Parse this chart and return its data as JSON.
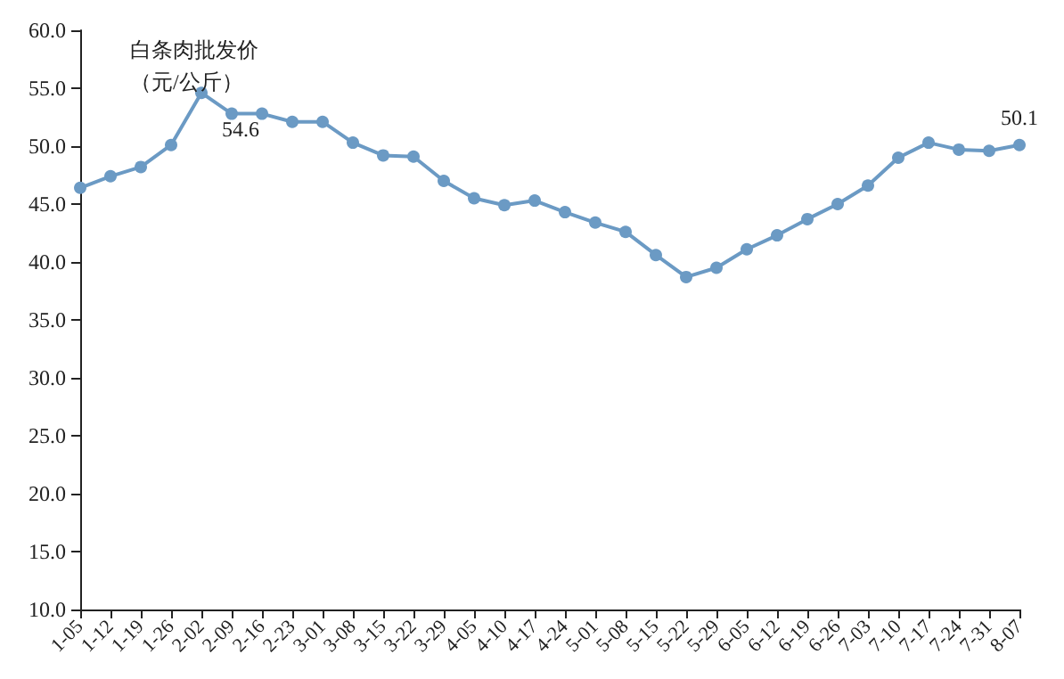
{
  "chart_data": {
    "type": "line",
    "ylabel": "白条肉批发价（元/公斤）",
    "categories": [
      "1-05",
      "1-12",
      "1-19",
      "1-26",
      "2-02",
      "2-09",
      "2-16",
      "2-23",
      "3-01",
      "3-08",
      "3-15",
      "3-22",
      "3-29",
      "4-05",
      "4-10",
      "4-17",
      "4-24",
      "5-01",
      "5-08",
      "5-15",
      "5-22",
      "5-29",
      "6-05",
      "6-12",
      "6-19",
      "6-26",
      "7-03",
      "7-10",
      "7-17",
      "7-24",
      "7-31",
      "8-07"
    ],
    "series": [
      {
        "color": "#6b9ac4",
        "values": [
          46.4,
          47.4,
          48.2,
          50.1,
          54.6,
          52.8,
          52.8,
          52.1,
          52.1,
          50.3,
          49.2,
          49.1,
          47.0,
          45.5,
          44.9,
          45.3,
          44.3,
          43.4,
          42.6,
          40.6,
          38.7,
          39.5,
          41.1,
          42.3,
          43.7,
          45.0,
          46.6,
          49.0,
          50.3,
          49.7,
          49.6,
          50.1
        ],
        "value_labels": [
          null,
          null,
          null,
          null,
          "54.6",
          null,
          null,
          null,
          null,
          null,
          null,
          null,
          null,
          null,
          null,
          null,
          null,
          null,
          null,
          null,
          null,
          null,
          null,
          null,
          null,
          null,
          null,
          null,
          null,
          null,
          null,
          "50.1"
        ]
      }
    ],
    "ylim": [
      10,
      60
    ],
    "yticks": [
      {
        "value": 10,
        "label": "10.0"
      },
      {
        "value": 15,
        "label": "15.0"
      },
      {
        "value": 20,
        "label": "20.0"
      },
      {
        "value": 25,
        "label": "25.0"
      },
      {
        "value": 30,
        "label": "30.0"
      },
      {
        "value": 35,
        "label": "35.0"
      },
      {
        "value": 40,
        "label": "40.0"
      },
      {
        "value": 45,
        "label": "45.0"
      },
      {
        "value": 50,
        "label": "50.0"
      },
      {
        "value": 55,
        "label": "55.0"
      },
      {
        "value": 60,
        "label": "60.0"
      }
    ],
    "grid": false,
    "marker": "circle",
    "line_style": "solid"
  }
}
